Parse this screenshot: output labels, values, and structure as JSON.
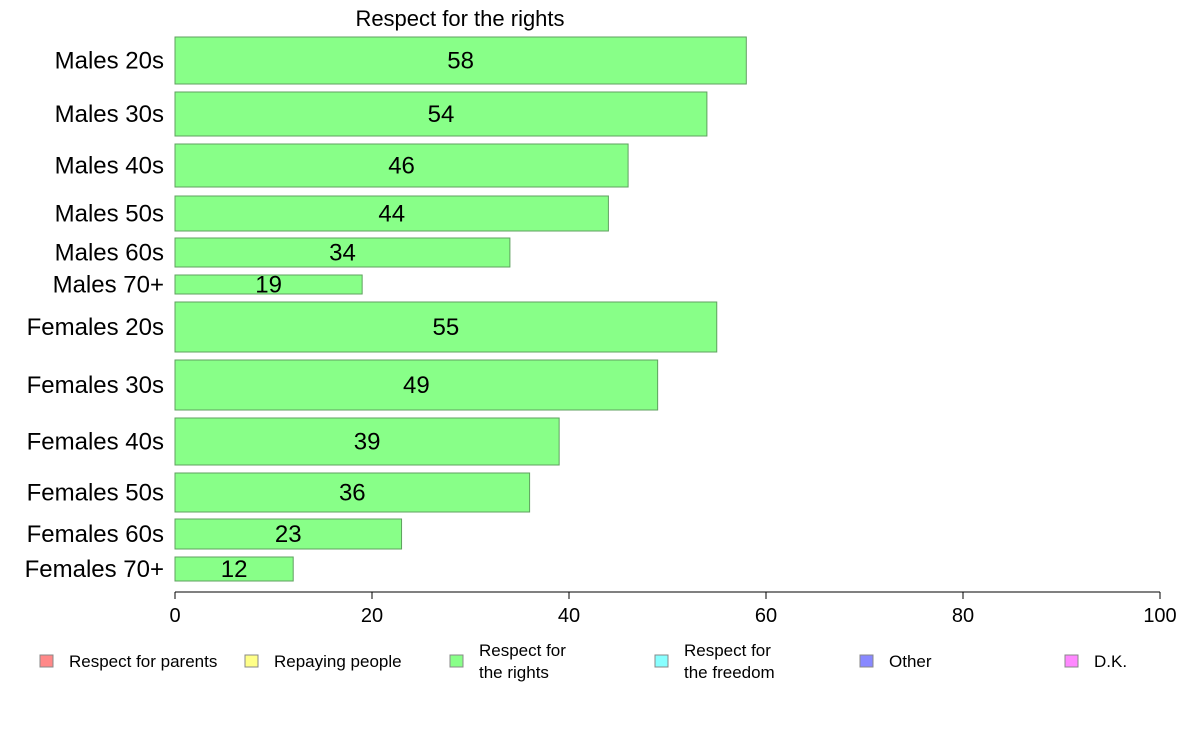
{
  "chart_data": {
    "type": "bar",
    "orientation": "horizontal",
    "title": "Respect for the rights",
    "categories": [
      "Males 20s",
      "Males 30s",
      "Males 40s",
      "Males 50s",
      "Males 60s",
      "Males 70+",
      "Females 20s",
      "Females 30s",
      "Females 40s",
      "Females 50s",
      "Females 60s",
      "Females 70+"
    ],
    "values": [
      58,
      54,
      46,
      44,
      34,
      19,
      55,
      49,
      39,
      36,
      23,
      12
    ],
    "bar_color": "#88ff88",
    "xlim": [
      0,
      100
    ],
    "xticks": [
      0,
      20,
      40,
      60,
      80,
      100
    ],
    "xlabel": "",
    "ylabel": "",
    "grid": false,
    "legend_position": "bottom",
    "legend": [
      {
        "label": [
          "Respect for parents"
        ],
        "color": "#ff8888"
      },
      {
        "label": [
          "Repaying people"
        ],
        "color": "#ffff88"
      },
      {
        "label": [
          "Respect for",
          "the rights"
        ],
        "color": "#88ff88"
      },
      {
        "label": [
          "Respect for",
          "the freedom"
        ],
        "color": "#88ffff"
      },
      {
        "label": [
          "Other"
        ],
        "color": "#8888ff"
      },
      {
        "label": [
          "D.K."
        ],
        "color": "#ff88ff"
      }
    ]
  }
}
